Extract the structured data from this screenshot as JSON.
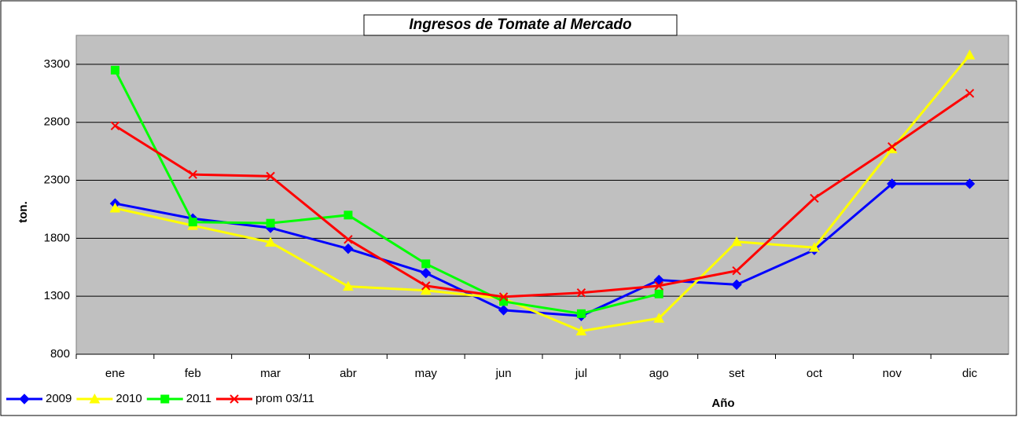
{
  "chart_data": {
    "type": "line",
    "title": "Ingresos de Tomate al Mercado",
    "x_label": "Año",
    "y_label": "ton.",
    "categories": [
      "ene",
      "feb",
      "mar",
      "abr",
      "may",
      "jun",
      "jul",
      "ago",
      "set",
      "oct",
      "nov",
      "dic"
    ],
    "series": [
      {
        "name": "2009",
        "color": "#0000ff",
        "marker": "diamond",
        "values": [
          2100,
          1970,
          1890,
          1710,
          1500,
          1180,
          1130,
          1440,
          1400,
          1700,
          2270,
          2270
        ]
      },
      {
        "name": "2010",
        "color": "#ffff00",
        "marker": "triangle",
        "values": [
          2060,
          1910,
          1765,
          1385,
          1350,
          1280,
          1000,
          1110,
          1770,
          1720,
          2570,
          3380
        ]
      },
      {
        "name": "2011",
        "color": "#00ff00",
        "marker": "square",
        "values": [
          3250,
          1940,
          1930,
          2000,
          1580,
          1255,
          1150,
          1320,
          null,
          null,
          null,
          null
        ]
      },
      {
        "name": "prom 03/11",
        "color": "#ff0000",
        "marker": "x",
        "values": [
          2770,
          2350,
          2335,
          1790,
          1390,
          1295,
          1330,
          1390,
          1520,
          2145,
          2590,
          3050
        ]
      }
    ],
    "ylim": [
      800,
      3550
    ],
    "yticks": [
      800,
      1300,
      1800,
      2300,
      2800,
      3300
    ],
    "grid": true,
    "legend": "bottom-left"
  }
}
